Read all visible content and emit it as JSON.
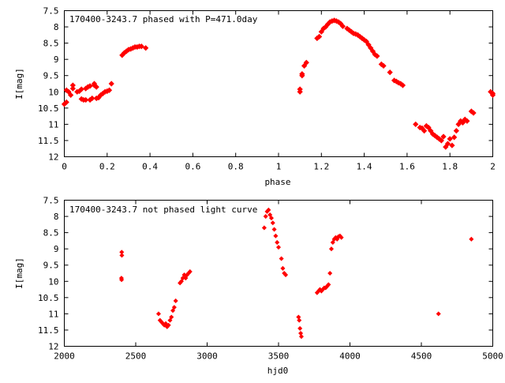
{
  "chart_data": [
    {
      "type": "scatter",
      "title": "170400-3243.7 phased with P=471.0day",
      "xlabel": "phase",
      "ylabel": "I[mag]",
      "xlim": [
        0,
        2
      ],
      "ylim": [
        7.5,
        12
      ],
      "y_inverted": true,
      "x_ticks": [
        0,
        0.2,
        0.4,
        0.6,
        0.8,
        1,
        1.2,
        1.4,
        1.6,
        1.8,
        2
      ],
      "x_tick_labels": [
        "0",
        "0.2",
        "0.4",
        "0.6",
        "0.8",
        "1",
        "1.2",
        "1.4",
        "1.6",
        "1.8",
        "2"
      ],
      "y_ticks": [
        7.5,
        8,
        8.5,
        9,
        9.5,
        10,
        10.5,
        11,
        11.5,
        12
      ],
      "y_tick_labels": [
        "7.5",
        "8",
        "8.5",
        "9",
        "9.5",
        "10",
        "10.5",
        "11",
        "11.5",
        "12"
      ],
      "grid": false,
      "marker_color": "#ff0000",
      "marker": "diamond",
      "points": [
        [
          0.0,
          10.38
        ],
        [
          0.01,
          10.32
        ],
        [
          0.01,
          9.95
        ],
        [
          0.02,
          10.0
        ],
        [
          0.03,
          10.1
        ],
        [
          0.04,
          9.8
        ],
        [
          0.04,
          9.9
        ],
        [
          0.06,
          10.0
        ],
        [
          0.07,
          9.98
        ],
        [
          0.08,
          10.22
        ],
        [
          0.08,
          9.92
        ],
        [
          0.09,
          10.25
        ],
        [
          0.1,
          9.9
        ],
        [
          0.1,
          10.25
        ],
        [
          0.11,
          9.85
        ],
        [
          0.12,
          10.25
        ],
        [
          0.12,
          9.82
        ],
        [
          0.13,
          10.2
        ],
        [
          0.14,
          9.75
        ],
        [
          0.14,
          9.8
        ],
        [
          0.15,
          10.2
        ],
        [
          0.15,
          9.85
        ],
        [
          0.16,
          10.18
        ],
        [
          0.17,
          10.1
        ],
        [
          0.18,
          10.05
        ],
        [
          0.19,
          10.0
        ],
        [
          0.2,
          9.98
        ],
        [
          0.21,
          9.95
        ],
        [
          0.22,
          9.75
        ],
        [
          0.27,
          8.87
        ],
        [
          0.28,
          8.8
        ],
        [
          0.29,
          8.75
        ],
        [
          0.3,
          8.7
        ],
        [
          0.31,
          8.68
        ],
        [
          0.32,
          8.65
        ],
        [
          0.33,
          8.62
        ],
        [
          0.34,
          8.62
        ],
        [
          0.35,
          8.6
        ],
        [
          0.36,
          8.6
        ],
        [
          0.38,
          8.65
        ],
        [
          1.1,
          10.0
        ],
        [
          1.1,
          9.92
        ],
        [
          1.11,
          9.5
        ],
        [
          1.11,
          9.45
        ],
        [
          1.12,
          9.2
        ],
        [
          1.13,
          9.1
        ],
        [
          1.18,
          8.35
        ],
        [
          1.19,
          8.3
        ],
        [
          1.2,
          8.15
        ],
        [
          1.21,
          8.05
        ],
        [
          1.22,
          8.0
        ],
        [
          1.23,
          7.92
        ],
        [
          1.24,
          7.85
        ],
        [
          1.25,
          7.82
        ],
        [
          1.26,
          7.8
        ],
        [
          1.27,
          7.82
        ],
        [
          1.28,
          7.85
        ],
        [
          1.29,
          7.9
        ],
        [
          1.3,
          7.98
        ],
        [
          1.32,
          8.05
        ],
        [
          1.33,
          8.1
        ],
        [
          1.34,
          8.15
        ],
        [
          1.35,
          8.2
        ],
        [
          1.36,
          8.22
        ],
        [
          1.37,
          8.25
        ],
        [
          1.38,
          8.3
        ],
        [
          1.39,
          8.35
        ],
        [
          1.4,
          8.4
        ],
        [
          1.41,
          8.45
        ],
        [
          1.42,
          8.55
        ],
        [
          1.43,
          8.65
        ],
        [
          1.44,
          8.75
        ],
        [
          1.45,
          8.85
        ],
        [
          1.46,
          8.9
        ],
        [
          1.48,
          9.15
        ],
        [
          1.49,
          9.2
        ],
        [
          1.52,
          9.4
        ],
        [
          1.54,
          9.65
        ],
        [
          1.55,
          9.68
        ],
        [
          1.56,
          9.72
        ],
        [
          1.57,
          9.75
        ],
        [
          1.58,
          9.8
        ],
        [
          1.64,
          11.0
        ],
        [
          1.66,
          11.1
        ],
        [
          1.67,
          11.12
        ],
        [
          1.68,
          11.2
        ],
        [
          1.69,
          11.05
        ],
        [
          1.7,
          11.1
        ],
        [
          1.71,
          11.2
        ],
        [
          1.72,
          11.3
        ],
        [
          1.73,
          11.35
        ],
        [
          1.74,
          11.4
        ],
        [
          1.75,
          11.45
        ],
        [
          1.76,
          11.5
        ],
        [
          1.77,
          11.38
        ],
        [
          1.78,
          11.7
        ],
        [
          1.79,
          11.6
        ],
        [
          1.8,
          11.45
        ],
        [
          1.81,
          11.65
        ],
        [
          1.82,
          11.4
        ],
        [
          1.83,
          11.2
        ],
        [
          1.84,
          11.0
        ],
        [
          1.85,
          10.9
        ],
        [
          1.86,
          10.95
        ],
        [
          1.87,
          10.85
        ],
        [
          1.88,
          10.9
        ],
        [
          1.9,
          10.6
        ],
        [
          1.91,
          10.65
        ],
        [
          1.99,
          10.0
        ],
        [
          2.0,
          10.05
        ],
        [
          2.0,
          10.1
        ]
      ]
    },
    {
      "type": "scatter",
      "title": "170400-3243.7 not phased light curve",
      "xlabel": "hjd0",
      "ylabel": "I[mag]",
      "xlim": [
        2000,
        5000
      ],
      "ylim": [
        7.5,
        12
      ],
      "y_inverted": true,
      "x_ticks": [
        2000,
        2500,
        3000,
        3500,
        4000,
        4500,
        5000
      ],
      "x_tick_labels": [
        "2000",
        "2500",
        "3000",
        "3500",
        "4000",
        "4500",
        "5000"
      ],
      "y_ticks": [
        7.5,
        8,
        8.5,
        9,
        9.5,
        10,
        10.5,
        11,
        11.5,
        12
      ],
      "y_tick_labels": [
        "7.5",
        "8",
        "8.5",
        "9",
        "9.5",
        "10",
        "10.5",
        "11",
        "11.5",
        "12"
      ],
      "grid": false,
      "marker_color": "#ff0000",
      "marker": "diamond",
      "points": [
        [
          2400,
          9.9
        ],
        [
          2401,
          9.95
        ],
        [
          2402,
          9.1
        ],
        [
          2403,
          9.2
        ],
        [
          2660,
          11.0
        ],
        [
          2670,
          11.2
        ],
        [
          2680,
          11.25
        ],
        [
          2690,
          11.3
        ],
        [
          2700,
          11.35
        ],
        [
          2710,
          11.3
        ],
        [
          2720,
          11.4
        ],
        [
          2730,
          11.35
        ],
        [
          2740,
          11.2
        ],
        [
          2750,
          11.1
        ],
        [
          2760,
          10.9
        ],
        [
          2770,
          10.8
        ],
        [
          2780,
          10.6
        ],
        [
          2810,
          10.05
        ],
        [
          2820,
          10.0
        ],
        [
          2830,
          9.9
        ],
        [
          2840,
          9.8
        ],
        [
          2850,
          9.9
        ],
        [
          2860,
          9.8
        ],
        [
          2870,
          9.75
        ],
        [
          2880,
          9.7
        ],
        [
          3400,
          8.35
        ],
        [
          3410,
          8.0
        ],
        [
          3420,
          7.85
        ],
        [
          3430,
          7.8
        ],
        [
          3440,
          7.95
        ],
        [
          3450,
          8.05
        ],
        [
          3460,
          8.2
        ],
        [
          3470,
          8.4
        ],
        [
          3480,
          8.6
        ],
        [
          3490,
          8.8
        ],
        [
          3500,
          8.95
        ],
        [
          3520,
          9.3
        ],
        [
          3530,
          9.6
        ],
        [
          3540,
          9.75
        ],
        [
          3550,
          9.8
        ],
        [
          3640,
          11.1
        ],
        [
          3645,
          11.2
        ],
        [
          3650,
          11.45
        ],
        [
          3655,
          11.6
        ],
        [
          3660,
          11.7
        ],
        [
          3770,
          10.35
        ],
        [
          3780,
          10.3
        ],
        [
          3790,
          10.25
        ],
        [
          3800,
          10.3
        ],
        [
          3810,
          10.25
        ],
        [
          3820,
          10.2
        ],
        [
          3830,
          10.2
        ],
        [
          3840,
          10.15
        ],
        [
          3850,
          10.1
        ],
        [
          3860,
          9.75
        ],
        [
          3870,
          9.0
        ],
        [
          3880,
          8.8
        ],
        [
          3890,
          8.7
        ],
        [
          3900,
          8.65
        ],
        [
          3910,
          8.7
        ],
        [
          3920,
          8.62
        ],
        [
          3930,
          8.6
        ],
        [
          3940,
          8.65
        ],
        [
          4620,
          11.0
        ],
        [
          4850,
          8.7
        ]
      ]
    }
  ]
}
